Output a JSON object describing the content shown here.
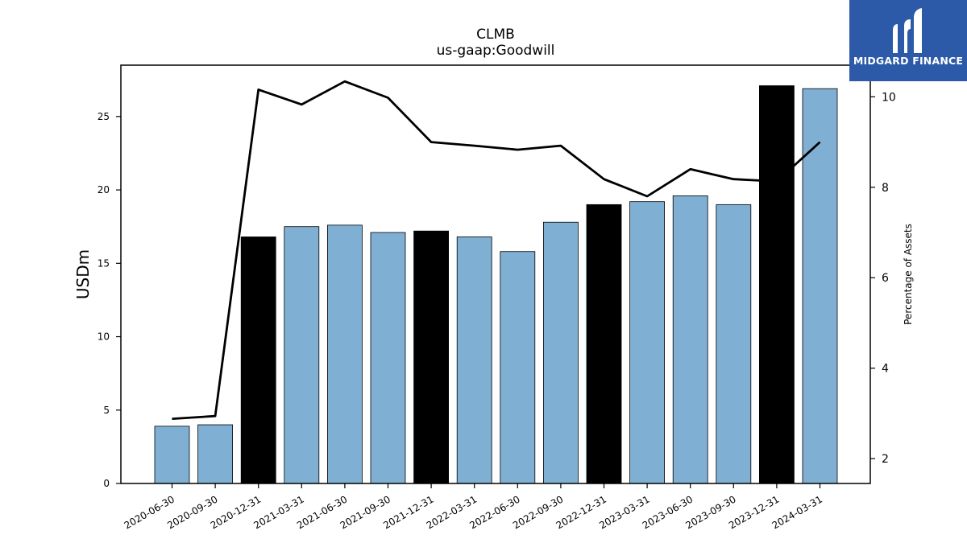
{
  "chart_data": {
    "type": "bar",
    "title": "CLMB",
    "subtitle": "us-gaap:Goodwill",
    "ylabel": "USDm",
    "y2label": "Percentage of Assets",
    "categories": [
      "2020-06-30",
      "2020-09-30",
      "2020-12-31",
      "2021-03-31",
      "2021-06-30",
      "2021-09-30",
      "2021-12-31",
      "2022-03-31",
      "2022-06-30",
      "2022-09-30",
      "2022-12-31",
      "2023-03-31",
      "2023-06-30",
      "2023-09-30",
      "2023-12-31",
      "2024-03-31"
    ],
    "series": [
      {
        "type": "bar",
        "values": [
          3.9,
          4.0,
          16.8,
          17.5,
          17.6,
          17.1,
          17.2,
          16.8,
          15.8,
          17.8,
          19.0,
          19.2,
          19.6,
          19.0,
          27.1,
          26.9
        ]
      },
      {
        "type": "line",
        "axis": "right",
        "values": [
          2.88,
          2.94,
          10.16,
          9.83,
          10.34,
          9.98,
          9.0,
          8.92,
          8.83,
          8.92,
          8.18,
          7.8,
          8.4,
          8.18,
          8.13,
          9.0
        ]
      }
    ],
    "bar_colors": [
      "light",
      "light",
      "dark",
      "light",
      "light",
      "light",
      "dark",
      "light",
      "light",
      "light",
      "dark",
      "light",
      "light",
      "light",
      "dark",
      "light"
    ],
    "colors": {
      "light": "#7fb0d4",
      "dark": "#000000",
      "line": "#000000"
    },
    "ylim": [
      0,
      28.5
    ],
    "y2lim": [
      1.45,
      10.7
    ],
    "yticks": [
      0,
      5,
      10,
      15,
      20,
      25
    ],
    "y2ticks": [
      2,
      4,
      6,
      8,
      10
    ],
    "grid": false,
    "logo_text": "MIDGARD FINANCE"
  }
}
